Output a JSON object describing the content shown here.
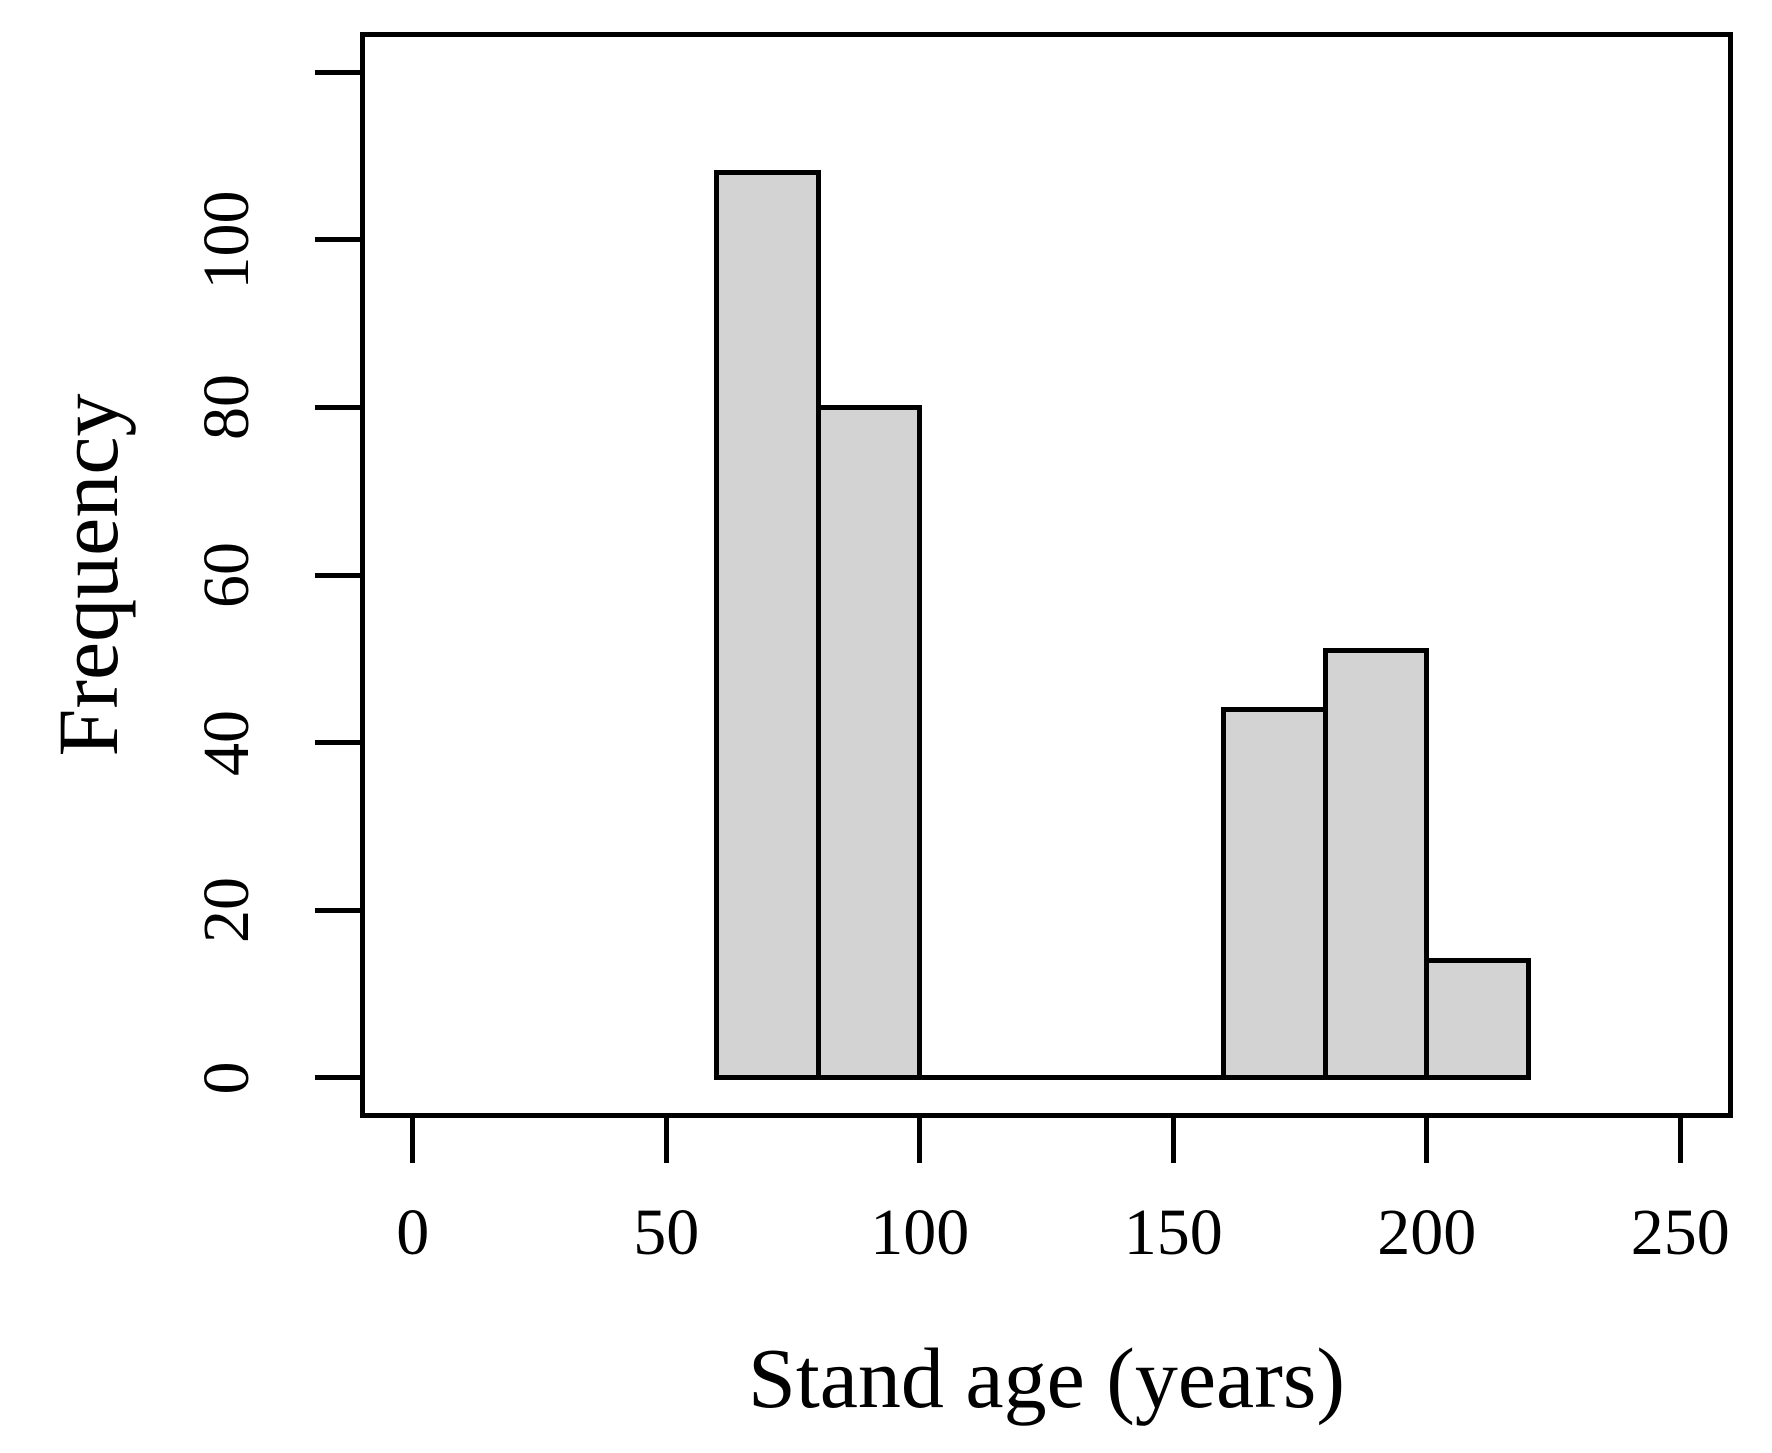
{
  "figure": {
    "background": "#ffffff"
  },
  "chart_data": {
    "type": "bar",
    "subtype": "histogram",
    "title": "",
    "xlabel": "Stand age (years)",
    "ylabel": "Frequency",
    "bins": [
      {
        "start": 60,
        "end": 80,
        "count": 108
      },
      {
        "start": 80,
        "end": 100,
        "count": 80
      },
      {
        "start": 100,
        "end": 160,
        "count": 0
      },
      {
        "start": 160,
        "end": 180,
        "count": 44
      },
      {
        "start": 180,
        "end": 200,
        "count": 51
      },
      {
        "start": 200,
        "end": 220,
        "count": 14
      }
    ],
    "x_ticks": [
      {
        "value": 0,
        "label": "0"
      },
      {
        "value": 50,
        "label": "50"
      },
      {
        "value": 100,
        "label": "100"
      },
      {
        "value": 150,
        "label": "150"
      },
      {
        "value": 200,
        "label": "200"
      },
      {
        "value": 250,
        "label": "250"
      }
    ],
    "y_ticks": [
      {
        "value": 0,
        "label": "0"
      },
      {
        "value": 20,
        "label": "20"
      },
      {
        "value": 40,
        "label": "40"
      },
      {
        "value": 60,
        "label": "60"
      },
      {
        "value": 80,
        "label": "80"
      },
      {
        "value": 100,
        "label": "100"
      },
      {
        "value": 120,
        "label": ""
      }
    ],
    "xlim": [
      -10.4,
      260.4
    ],
    "ylim": [
      -4.8,
      124.8
    ],
    "grid": false,
    "legend": "none",
    "bar_fill": "#d3d3d3",
    "bar_border": "#000000",
    "axis_color": "#000000",
    "text_color": "#000000"
  }
}
